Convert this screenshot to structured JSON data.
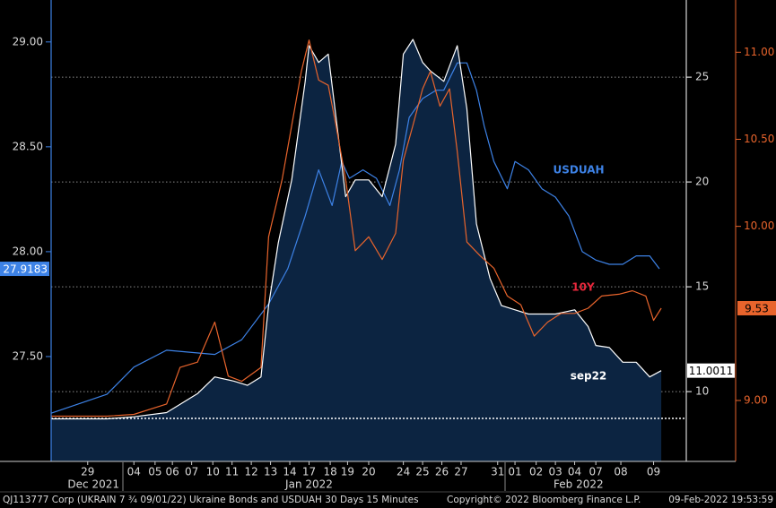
{
  "chart_data": {
    "type": "line",
    "xlim": [
      0,
      33
    ],
    "xticks": [
      {
        "value": 1.9,
        "label": "29"
      },
      {
        "value": 4.3,
        "label": "04"
      },
      {
        "value": 5.4,
        "label": "05"
      },
      {
        "value": 6.3,
        "label": "06"
      },
      {
        "value": 7.3,
        "label": "07"
      },
      {
        "value": 8.4,
        "label": "10"
      },
      {
        "value": 9.4,
        "label": "11"
      },
      {
        "value": 10.4,
        "label": "12"
      },
      {
        "value": 11.4,
        "label": "13"
      },
      {
        "value": 12.4,
        "label": "14"
      },
      {
        "value": 13.4,
        "label": "17"
      },
      {
        "value": 14.5,
        "label": "18"
      },
      {
        "value": 15.4,
        "label": "19"
      },
      {
        "value": 16.5,
        "label": "20"
      },
      {
        "value": 18.3,
        "label": "24"
      },
      {
        "value": 19.3,
        "label": "25"
      },
      {
        "value": 20.3,
        "label": "26"
      },
      {
        "value": 21.3,
        "label": "27"
      },
      {
        "value": 23.2,
        "label": "31"
      },
      {
        "value": 24.1,
        "label": "01"
      },
      {
        "value": 25.2,
        "label": "02"
      },
      {
        "value": 26.2,
        "label": "03"
      },
      {
        "value": 27.2,
        "label": "04"
      },
      {
        "value": 28.3,
        "label": "07"
      },
      {
        "value": 29.6,
        "label": "08"
      },
      {
        "value": 31.3,
        "label": "09"
      }
    ],
    "month_labels": [
      {
        "value": 2.2,
        "label": "Dec 2021"
      },
      {
        "value": 13.4,
        "label": "Jan 2022"
      },
      {
        "value": 27.4,
        "label": "Feb 2022"
      }
    ],
    "ylim": [
      27.0,
      29.2
    ],
    "yticks": [
      {
        "value": 27.5,
        "label": "27.50"
      },
      {
        "value": 28.0,
        "label": "28.00"
      },
      {
        "value": 28.5,
        "label": "28.50"
      },
      {
        "value": 29.0,
        "label": "29.00"
      }
    ],
    "y2lim": [
      6.67,
      28.68
    ],
    "y2ticks": [
      10,
      15,
      20,
      25
    ],
    "y3lim": [
      8.65,
      11.3
    ],
    "y3ticks": [
      {
        "value": 9.0,
        "label": "9.00"
      },
      {
        "value": 10.0,
        "label": "10.00"
      },
      {
        "value": 10.5,
        "label": "10.50"
      },
      {
        "value": 11.0,
        "label": "11.00"
      }
    ],
    "grid": true,
    "reference_line": {
      "value": 8.72,
      "axis": "y2"
    },
    "series": [
      {
        "name": "USDUAH",
        "color": "#3d82e6",
        "label_color": "#3d82e6",
        "axis": "y",
        "x": [
          0,
          2.9,
          4.3,
          6.0,
          8.5,
          9.9,
          11.3,
          12.3,
          13.2,
          13.9,
          14.6,
          15.1,
          15.5,
          16.2,
          16.9,
          17.6,
          18.1,
          18.6,
          19.3,
          20.0,
          20.4,
          21.1,
          21.6,
          22.1,
          22.5,
          23.0,
          23.7,
          24.1,
          24.8,
          25.5,
          26.2,
          26.9,
          27.6,
          28.3,
          29.0,
          29.7,
          30.4,
          31.1,
          31.6
        ],
        "values": [
          27.23,
          27.32,
          27.45,
          27.53,
          27.51,
          27.58,
          27.75,
          27.92,
          28.17,
          28.39,
          28.22,
          28.43,
          28.35,
          28.39,
          28.35,
          28.22,
          28.39,
          28.64,
          28.73,
          28.77,
          28.77,
          28.9,
          28.9,
          28.77,
          28.6,
          28.43,
          28.3,
          28.43,
          28.39,
          28.3,
          28.26,
          28.17,
          28.0,
          27.96,
          27.94,
          27.94,
          27.98,
          27.98,
          27.9183
        ]
      },
      {
        "name": "sep22",
        "color": "#ffffff",
        "label_color": "#ffffff",
        "area_color": "#0c2441",
        "axis": "y2",
        "x": [
          0,
          2.9,
          4.3,
          6.0,
          7.6,
          8.5,
          9.5,
          10.2,
          10.9,
          11.3,
          11.8,
          12.5,
          13.2,
          13.4,
          13.9,
          14.4,
          14.8,
          15.3,
          15.8,
          16.5,
          17.2,
          17.9,
          18.3,
          18.8,
          19.3,
          19.7,
          20.4,
          21.1,
          21.6,
          22.1,
          22.8,
          23.4,
          24.1,
          24.8,
          25.5,
          26.2,
          27.2,
          27.9,
          28.3,
          29.0,
          29.7,
          30.4,
          31.1,
          31.7
        ],
        "values": [
          8.7,
          8.7,
          8.8,
          9.0,
          9.9,
          10.7,
          10.5,
          10.3,
          10.7,
          14.1,
          17.1,
          20.1,
          24.8,
          26.5,
          25.7,
          26.1,
          23.1,
          19.3,
          20.1,
          20.1,
          19.3,
          21.8,
          26.1,
          26.8,
          25.7,
          25.3,
          24.8,
          26.5,
          23.5,
          18.0,
          15.4,
          14.1,
          13.9,
          13.7,
          13.7,
          13.7,
          13.9,
          13.1,
          12.2,
          12.1,
          11.4,
          11.4,
          10.7,
          11.0011
        ]
      },
      {
        "name": "10Y",
        "color": "#e8642c",
        "label_color": "#e8283c",
        "axis": "y3",
        "x": [
          0,
          2.9,
          4.3,
          6.0,
          6.7,
          7.6,
          8.5,
          9.2,
          9.9,
          10.9,
          11.3,
          12.0,
          12.5,
          13.0,
          13.4,
          13.9,
          14.4,
          14.8,
          15.3,
          15.8,
          16.5,
          17.2,
          17.9,
          18.3,
          18.8,
          19.3,
          19.7,
          20.2,
          20.7,
          21.1,
          21.6,
          22.3,
          23.0,
          23.7,
          24.4,
          25.1,
          25.8,
          26.5,
          27.2,
          27.9,
          28.6,
          29.5,
          30.2,
          30.9,
          31.3,
          31.7
        ],
        "values": [
          8.91,
          8.91,
          8.92,
          8.98,
          9.19,
          9.22,
          9.45,
          9.14,
          9.11,
          9.19,
          9.94,
          10.27,
          10.58,
          10.89,
          11.07,
          10.84,
          10.81,
          10.58,
          10.27,
          9.86,
          9.94,
          9.81,
          9.96,
          10.38,
          10.58,
          10.79,
          10.89,
          10.69,
          10.79,
          10.43,
          9.91,
          9.83,
          9.76,
          9.6,
          9.55,
          9.37,
          9.45,
          9.5,
          9.5,
          9.53,
          9.6,
          9.61,
          9.63,
          9.6,
          9.46,
          9.53
        ]
      }
    ],
    "footer": {
      "description": "QJ113777 Corp (UKRAIN 7 ¾ 09/01/22) Ukraine Bonds and USDUAH 30 Days 15 Minutes",
      "copyright": "Copyright© 2022 Bloomberg Finance L.P.",
      "timestamp": "09-Feb-2022 19:53:59"
    }
  }
}
